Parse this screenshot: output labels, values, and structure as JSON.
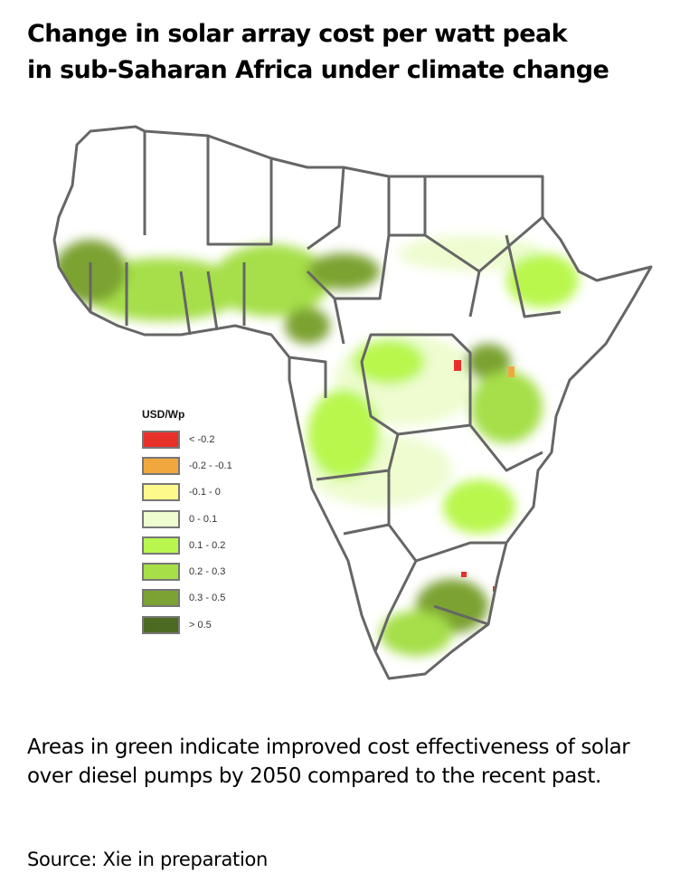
{
  "title_line1": "Change in solar array cost per watt peak",
  "title_line2": "in sub-Saharan Africa under climate change",
  "legend": {
    "title": "USD/Wp",
    "items": [
      {
        "label": "< -0.2",
        "color": "#e8302a"
      },
      {
        "label": "-0.2 - -0.1",
        "color": "#f0a83e"
      },
      {
        "label": "-0.1 - 0",
        "color": "#fdf98a"
      },
      {
        "label": "0 - 0.1",
        "color": "#eefcd0"
      },
      {
        "label": "0.1 - 0.2",
        "color": "#b9f74e"
      },
      {
        "label": "0.2 - 0.3",
        "color": "#a6df48"
      },
      {
        "label": "0.3 - 0.5",
        "color": "#7ba233"
      },
      {
        "label": "> 0.5",
        "color": "#4d6a22"
      }
    ]
  },
  "caption": "Areas in green indicate improved cost effectiveness of solar over diesel pumps by 2050 compared to the recent past.",
  "source": "Source: Xie in preparation"
}
